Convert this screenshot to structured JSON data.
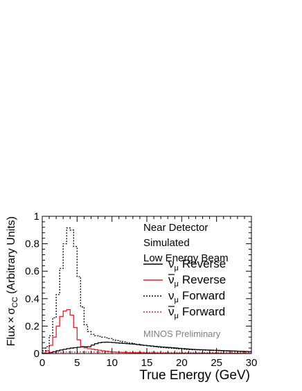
{
  "chart_data": {
    "type": "line",
    "xlabel": "True Energy (GeV)",
    "ylabel": {
      "prefix": "Flux",
      "times": "×",
      "sigma": "σ",
      "sub": "CC",
      "suffix": "(Arbitrary Units)"
    },
    "xlim": [
      0,
      30
    ],
    "ylim": [
      0,
      1
    ],
    "x_ticks": [
      0,
      5,
      10,
      15,
      20,
      25,
      30
    ],
    "x_tick_labels": [
      "0",
      "5",
      "10",
      "15",
      "20",
      "25",
      "30"
    ],
    "y_ticks": [
      0,
      0.2,
      0.4,
      0.6,
      0.8,
      1
    ],
    "y_tick_labels": [
      "0",
      "0.2",
      "0.4",
      "0.6",
      "0.8",
      "1"
    ],
    "legend_position": "top-right",
    "bin_width": 0.5,
    "annotations": [
      "Near Detector",
      "Simulated",
      "Low Energy Beam"
    ],
    "watermark": "MINOS Preliminary",
    "series": [
      {
        "name": {
          "sym": "ν",
          "bar": false,
          "sub": "μ",
          "word": "Reverse"
        },
        "color": "#000000",
        "dashed": false,
        "values": [
          0.0,
          0.003,
          0.008,
          0.014,
          0.02,
          0.026,
          0.031,
          0.036,
          0.04,
          0.043,
          0.046,
          0.048,
          0.049,
          0.05,
          0.062,
          0.072,
          0.079,
          0.082,
          0.083,
          0.082,
          0.08,
          0.078,
          0.076,
          0.074,
          0.072,
          0.07,
          0.068,
          0.065,
          0.062,
          0.06,
          0.057,
          0.055,
          0.052,
          0.05,
          0.048,
          0.046,
          0.044,
          0.042,
          0.04,
          0.038,
          0.036,
          0.034,
          0.032,
          0.03,
          0.029,
          0.028,
          0.027,
          0.026,
          0.025,
          0.024,
          0.023,
          0.022,
          0.021,
          0.02,
          0.019,
          0.018,
          0.017,
          0.016,
          0.015,
          0.014
        ]
      },
      {
        "name": {
          "sym": "ν",
          "bar": true,
          "sub": "μ",
          "word": "Reverse"
        },
        "color": "#ee1c24",
        "dashed": false,
        "values": [
          0.005,
          0.02,
          0.06,
          0.12,
          0.2,
          0.27,
          0.31,
          0.32,
          0.28,
          0.19,
          0.1,
          0.052,
          0.041,
          0.036,
          0.032,
          0.028,
          0.024,
          0.02,
          0.017,
          0.014,
          0.012,
          0.01,
          0.009,
          0.008,
          0.007,
          0.0065,
          0.006,
          0.0055,
          0.005,
          0.0045,
          0.004,
          0.0038,
          0.0035,
          0.0033,
          0.003,
          0.0028,
          0.0026,
          0.0025,
          0.0024,
          0.0023,
          0.0022,
          0.0021,
          0.002,
          0.002,
          0.0019,
          0.0018,
          0.0018,
          0.0017,
          0.0016,
          0.0016,
          0.0015,
          0.0015,
          0.0014,
          0.0014,
          0.0013,
          0.0013,
          0.0012,
          0.0012,
          0.0011,
          0.0011
        ]
      },
      {
        "name": {
          "sym": "ν",
          "bar": false,
          "sub": "μ",
          "word": "Forward"
        },
        "color": "#000000",
        "dashed": true,
        "values": [
          0.02,
          0.05,
          0.13,
          0.26,
          0.43,
          0.62,
          0.8,
          0.915,
          0.9,
          0.78,
          0.56,
          0.34,
          0.21,
          0.16,
          0.14,
          0.13,
          0.125,
          0.12,
          0.115,
          0.11,
          0.1,
          0.095,
          0.09,
          0.085,
          0.08,
          0.076,
          0.072,
          0.068,
          0.064,
          0.06,
          0.056,
          0.053,
          0.05,
          0.047,
          0.044,
          0.042,
          0.04,
          0.038,
          0.036,
          0.034,
          0.032,
          0.03,
          0.029,
          0.028,
          0.027,
          0.026,
          0.025,
          0.024,
          0.023,
          0.022,
          0.021,
          0.02,
          0.019,
          0.018,
          0.017,
          0.017,
          0.016,
          0.015,
          0.015,
          0.014
        ]
      },
      {
        "name": {
          "sym": "ν",
          "bar": true,
          "sub": "μ",
          "word": "Forward"
        },
        "color": "#ee1c24",
        "dashed": true,
        "values": [
          0.002,
          0.004,
          0.006,
          0.008,
          0.009,
          0.01,
          0.011,
          0.011,
          0.011,
          0.011,
          0.011,
          0.011,
          0.011,
          0.011,
          0.011,
          0.011,
          0.011,
          0.011,
          0.011,
          0.011,
          0.011,
          0.01,
          0.01,
          0.01,
          0.01,
          0.01,
          0.01,
          0.01,
          0.01,
          0.01,
          0.01,
          0.01,
          0.01,
          0.009,
          0.009,
          0.009,
          0.009,
          0.009,
          0.009,
          0.009,
          0.009,
          0.009,
          0.009,
          0.009,
          0.009,
          0.009,
          0.008,
          0.008,
          0.008,
          0.008,
          0.008,
          0.008,
          0.008,
          0.008,
          0.008,
          0.008,
          0.008,
          0.008,
          0.008,
          0.008
        ]
      }
    ]
  }
}
